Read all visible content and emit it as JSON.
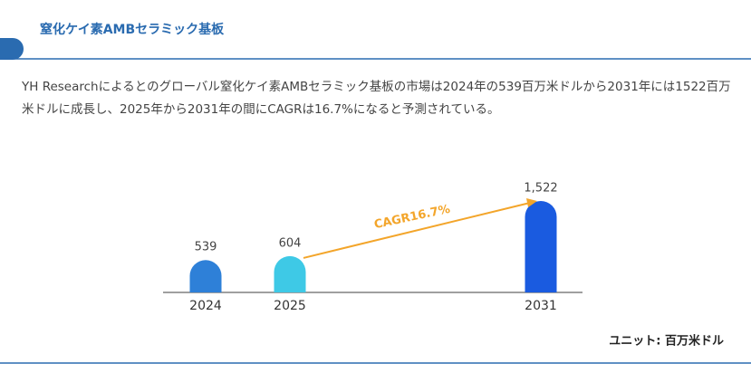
{
  "header": {
    "title": "窒化ケイ素AMBセラミック基板"
  },
  "paragraph": "YH Researchによるとのグローバル窒化ケイ素AMBセラミック基板の市場は2024年の539百万米ドルから2031年には1522百万米ドルに成長し、2025年から2031年の間にCAGRは16.7%になると予測されている。",
  "chart_data": {
    "type": "bar",
    "categories": [
      "2024",
      "2025",
      "2031"
    ],
    "values": [
      539,
      604,
      1522
    ],
    "value_labels": [
      "539",
      "604",
      "1,522"
    ],
    "colors": [
      "#2e80d8",
      "#3ec9e6",
      "#1a5be0"
    ],
    "annotation": "CAGR16.7%",
    "unit": "ユニット: 百万米ドル"
  }
}
